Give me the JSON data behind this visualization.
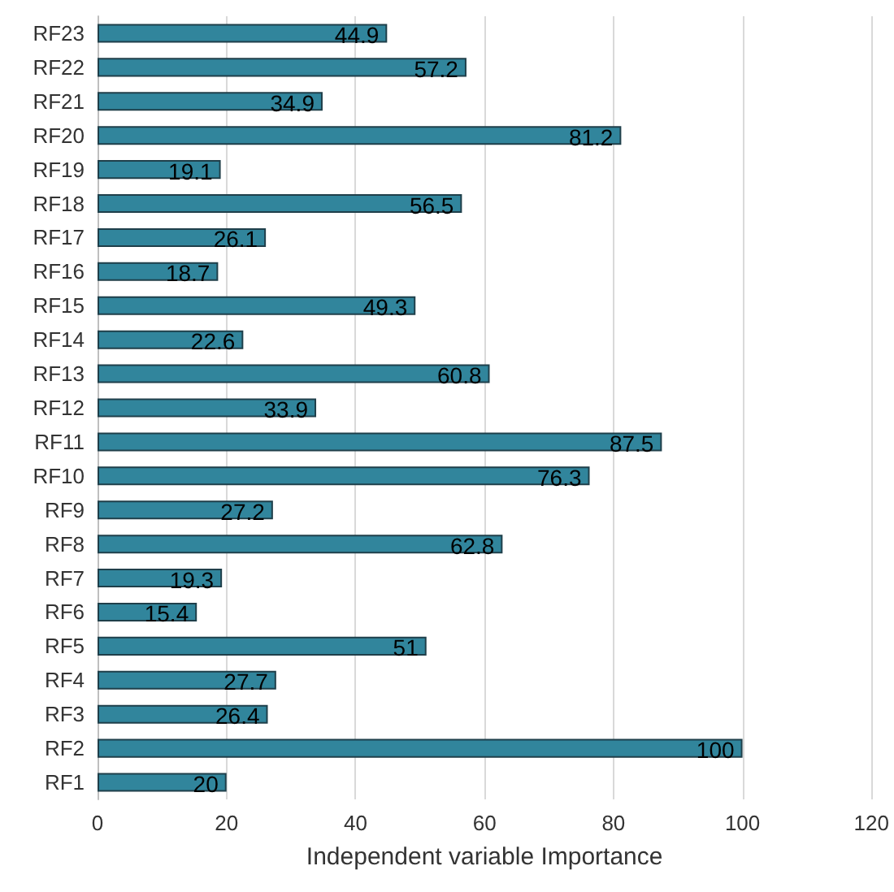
{
  "chart_data": {
    "type": "bar",
    "orientation": "horizontal",
    "xlabel": "Independent variable Importance",
    "categories": [
      "RF23",
      "RF22",
      "RF21",
      "RF20",
      "RF19",
      "RF18",
      "RF17",
      "RF16",
      "RF15",
      "RF14",
      "RF13",
      "RF12",
      "RF11",
      "RF10",
      "RF9",
      "RF8",
      "RF7",
      "RF6",
      "RF5",
      "RF4",
      "RF3",
      "RF2",
      "RF1"
    ],
    "values": [
      44.9,
      57.2,
      34.9,
      81.2,
      19.1,
      56.5,
      26.1,
      18.7,
      49.3,
      22.6,
      60.8,
      33.9,
      87.5,
      76.3,
      27.2,
      62.8,
      19.3,
      15.4,
      51,
      27.7,
      26.4,
      100,
      20
    ],
    "color": "#31859c",
    "xlim": [
      0,
      120
    ],
    "xticks": [
      0,
      20,
      40,
      60,
      80,
      100,
      120
    ],
    "grid": "x",
    "data_labels": true
  }
}
